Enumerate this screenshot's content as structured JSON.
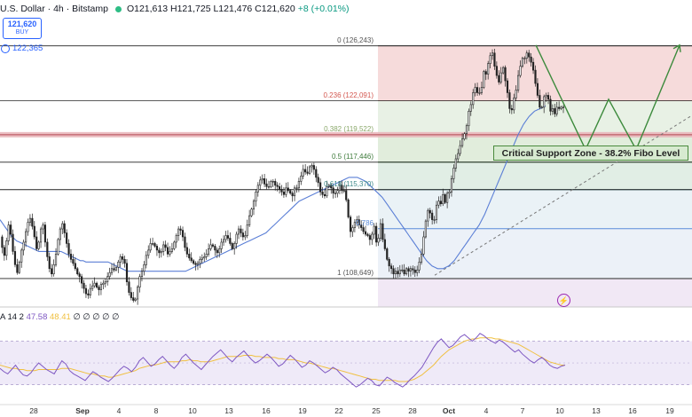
{
  "header": {
    "symbol": "U.S. Dollar · 4h · Bitstamp",
    "ohlc": "O121,613 H121,725 L121,476 C121,620",
    "change": "+8 (+0.01%)"
  },
  "buy_box": {
    "price": "121,620",
    "label": "BUY"
  },
  "indicator_value": "122,365",
  "fib_levels": [
    {
      "label": "0 (126,243)",
      "price": 126243,
      "color": "#555555"
    },
    {
      "label": "0.236 (122,091)",
      "price": 122091,
      "color": "#d3574f"
    },
    {
      "label": "0.382 (119,522)",
      "price": 119522,
      "color": "#8aa86a"
    },
    {
      "label": "0.5 (117,446)",
      "price": 117446,
      "color": "#3d7a3a"
    },
    {
      "label": "0.618 (115,370)",
      "price": 115370,
      "color": "#3d8a8a"
    },
    {
      "label": "0.786",
      "price": 112417,
      "color": "#5b8bd8"
    },
    {
      "label": "1 (108,649)",
      "price": 108649,
      "color": "#555555"
    }
  ],
  "callout": "Critical Support Zone - 38.2% Fibo Level",
  "rsi_header": {
    "name": "A 14 2",
    "value1": "47.58",
    "value2": "48.41",
    "extra": "∅ ∅      ∅ ∅ ∅"
  },
  "alert_icon": "alert-clock-icon",
  "colors": {
    "up": "#089981",
    "down": "#f23645",
    "candle": "#222222",
    "ma": "#5b7fd6",
    "rsi": "#7e57c2",
    "rsi_ma": "#f0c040"
  },
  "chart_data": {
    "type": "candlestick",
    "price_ylim": [
      106500,
      128500
    ],
    "close_prices": [
      111800,
      111000,
      110400,
      111500,
      112700,
      112000,
      110700,
      109700,
      109100,
      109900,
      110800,
      111400,
      112200,
      112900,
      113200,
      112600,
      111800,
      110900,
      111400,
      112400,
      112700,
      111400,
      110300,
      109400,
      109000,
      109700,
      110500,
      111600,
      112400,
      112800,
      112100,
      111300,
      110500,
      110100,
      109800,
      109400,
      109000,
      108800,
      108300,
      107900,
      107500,
      107400,
      107900,
      108100,
      108300,
      108000,
      107800,
      108200,
      108300,
      108400,
      108800,
      109100,
      109400,
      109300,
      109500,
      109900,
      110300,
      110100,
      109800,
      108400,
      107600,
      107200,
      107000,
      107100,
      108000,
      108800,
      109200,
      109700,
      110400,
      110800,
      111300,
      111300,
      111100,
      110800,
      110600,
      110700,
      111200,
      111000,
      110500,
      110700,
      110900,
      111400,
      111900,
      112400,
      112300,
      111800,
      111000,
      110500,
      110200,
      110000,
      109800,
      109700,
      109800,
      110100,
      110200,
      110300,
      110500,
      110900,
      111200,
      111100,
      110800,
      110600,
      110900,
      111400,
      111600,
      111900,
      111700,
      111300,
      110900,
      111300,
      112000,
      112400,
      112100,
      111800,
      111900,
      112700,
      113400,
      113900,
      114500,
      115200,
      115700,
      116100,
      116200,
      115800,
      115600,
      115600,
      116000,
      116000,
      115700,
      115600,
      115400,
      115200,
      115000,
      115500,
      115300,
      115100,
      114900,
      115500,
      115500,
      116000,
      116400,
      116900,
      116700,
      116600,
      117100,
      117200,
      116900,
      116300,
      115900,
      115200,
      115000,
      114900,
      115600,
      115700,
      115500,
      115100,
      115100,
      115300,
      115700,
      115300,
      115300,
      114600,
      113300,
      112200,
      112500,
      112900,
      113100,
      112700,
      112500,
      112200,
      112000,
      111900,
      111600,
      112000,
      112600,
      111400,
      111700,
      112800,
      111600,
      110900,
      110100,
      109600,
      109400,
      109000,
      109200,
      109000,
      109300,
      109300,
      109000,
      109400,
      109200,
      109400,
      109300,
      109100,
      109300,
      109900,
      110500,
      111800,
      113000,
      113800,
      113600,
      113100,
      113100,
      114200,
      114500,
      114300,
      115000,
      114400,
      115100,
      115200,
      116200,
      117000,
      117700,
      118100,
      118700,
      119200,
      119600,
      120200,
      121300,
      121800,
      122700,
      123100,
      122700,
      122700,
      123100,
      124300,
      124100,
      124900,
      125500,
      125700,
      124700,
      124000,
      123500,
      124200,
      124600,
      123600,
      122700,
      121500,
      121400,
      122300,
      122900,
      124000,
      124700,
      125300,
      125300,
      125700,
      125400,
      125000,
      124400,
      123400,
      122500,
      121600,
      121600,
      122400,
      122500,
      122200,
      121300,
      121500,
      121100,
      121600,
      121500,
      121600,
      121620
    ],
    "moving_average": {
      "values": [
        113100,
        112800,
        112500,
        112200,
        111900,
        111700,
        111500,
        111400,
        111300,
        111200,
        111100,
        111000,
        110900,
        110800,
        110700,
        110700,
        110700,
        110700,
        110700,
        110700,
        110700,
        110700,
        110700,
        110600,
        110500,
        110400,
        110300,
        110200,
        110100,
        110000,
        110000,
        109900,
        109900,
        109900,
        109900,
        109900,
        109900,
        109900,
        109900,
        109900,
        109800,
        109700,
        109600,
        109500,
        109400,
        109300,
        109200,
        109200,
        109200,
        109200,
        109200,
        109200,
        109200,
        109200,
        109200,
        109200,
        109200,
        109200,
        109200,
        109200,
        109200,
        109200,
        109200,
        109200,
        109200,
        109200,
        109200,
        109200,
        109300,
        109400,
        109500,
        109600,
        109700,
        109800,
        109900,
        110000,
        110100,
        110200,
        110300,
        110400,
        110500,
        110600,
        110700,
        110800,
        110900,
        111000,
        111100,
        111200,
        111300,
        111400,
        111500,
        111600,
        111700,
        111800,
        111900,
        112000,
        112100,
        112300,
        112500,
        112700,
        112900,
        113100,
        113300,
        113500,
        113700,
        113900,
        114100,
        114300,
        114500,
        114600,
        114700,
        114800,
        114900,
        115000,
        115100,
        115200,
        115300,
        115400,
        115500,
        115600,
        115700,
        115800,
        115900,
        116000,
        116100,
        116200,
        116300,
        116300,
        116300,
        116300,
        116200,
        116100,
        116000,
        115800,
        115600,
        115400,
        115200,
        115000,
        114800,
        114500,
        114200,
        113900,
        113600,
        113300,
        113000,
        112700,
        112400,
        112100,
        111800,
        111500,
        111200,
        110900,
        110600,
        110300,
        110000,
        109800,
        109600,
        109500,
        109400,
        109400,
        109400,
        109500,
        109600,
        109800,
        110000,
        110300,
        110600,
        110900,
        111200,
        111500,
        111800,
        112100,
        112400,
        112700,
        113100,
        113500,
        114000,
        114500,
        115000,
        115500,
        116000,
        116500,
        117000,
        117500,
        118000,
        118500,
        119000,
        119500,
        119900,
        120300,
        120600,
        120900,
        121100,
        121300,
        121400,
        121500,
        121600,
        121700
      ]
    },
    "rsi_values": [
      45,
      42,
      40,
      44,
      48,
      43,
      39,
      38,
      41,
      46,
      50,
      47,
      44,
      42,
      40,
      46,
      52,
      49,
      43,
      40,
      38,
      36,
      34,
      38,
      42,
      40,
      37,
      35,
      33,
      36,
      40,
      44,
      47,
      45,
      42,
      46,
      52,
      55,
      51,
      47,
      49,
      53,
      56,
      52,
      48,
      45,
      49,
      55,
      58,
      54,
      50,
      47,
      44,
      48,
      52,
      56,
      59,
      62,
      58,
      54,
      51,
      55,
      58,
      61,
      57,
      53,
      50,
      52,
      55,
      58,
      55,
      51,
      47,
      49,
      53,
      57,
      54,
      50,
      46,
      48,
      52,
      50,
      47,
      44,
      41,
      43,
      46,
      44,
      40,
      37,
      34,
      31,
      28,
      30,
      33,
      36,
      34,
      30,
      29,
      33,
      37,
      35,
      32,
      30,
      28,
      31,
      35,
      38,
      42,
      46,
      52,
      58,
      64,
      69,
      72,
      68,
      64,
      66,
      70,
      74,
      76,
      73,
      70,
      73,
      77,
      75,
      72,
      70,
      68,
      71,
      69,
      66,
      63,
      60,
      62,
      58,
      55,
      52,
      50,
      53,
      55,
      52,
      48,
      46,
      45,
      47,
      48
    ],
    "rsi_ma_values": [
      48,
      47,
      46,
      45,
      45,
      44,
      44,
      43,
      43,
      43,
      44,
      44,
      44,
      44,
      44,
      44,
      45,
      45,
      45,
      44,
      43,
      42,
      41,
      40,
      40,
      39,
      38,
      38,
      37,
      37,
      38,
      39,
      40,
      41,
      42,
      43,
      45,
      46,
      47,
      48,
      48,
      49,
      50,
      51,
      51,
      51,
      51,
      52,
      52,
      53,
      52,
      52,
      51,
      51,
      51,
      52,
      53,
      54,
      55,
      56,
      56,
      56,
      56,
      57,
      57,
      57,
      56,
      56,
      55,
      55,
      55,
      55,
      54,
      54,
      53,
      53,
      53,
      52,
      51,
      50,
      50,
      49,
      48,
      47,
      46,
      45,
      45,
      44,
      43,
      42,
      41,
      40,
      39,
      38,
      37,
      36,
      35,
      35,
      34,
      34,
      34,
      34,
      34,
      33,
      33,
      33,
      34,
      35,
      37,
      39,
      42,
      45,
      48,
      52,
      56,
      59,
      62,
      64,
      66,
      68,
      70,
      71,
      72,
      72,
      73,
      73,
      73,
      73,
      72,
      72,
      71,
      70,
      69,
      68,
      67,
      65,
      63,
      61,
      59,
      57,
      55,
      53,
      51,
      50,
      49,
      48,
      48
    ],
    "rsi_ylim": [
      20,
      85
    ],
    "x_tick_labels": [
      "28",
      "Sep",
      "4",
      "8",
      "10",
      "13",
      "16",
      "19",
      "22",
      "25",
      "28",
      "Oct",
      "4",
      "7",
      "10",
      "13",
      "16",
      "19"
    ],
    "projection_path": "green zigzag projected path",
    "trendline": "dashed ascending support line"
  }
}
